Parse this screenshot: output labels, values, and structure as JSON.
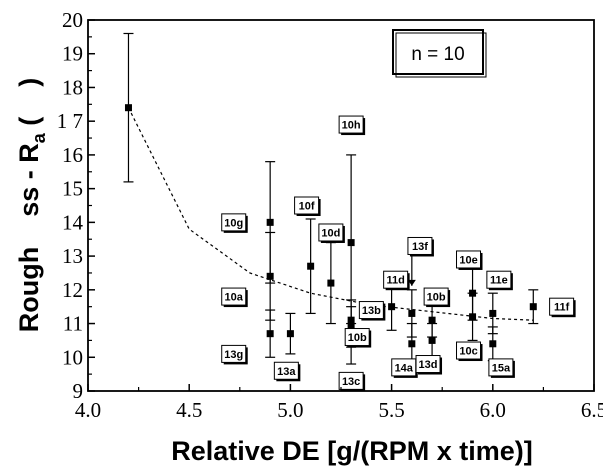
{
  "chart_data": {
    "type": "scatter",
    "title": "",
    "xlabel": "Relative DE [g/(RPM x time)]",
    "ylabel_parts": {
      "before": "Rough    ss - R",
      "sub": "a",
      "after": " (    )"
    },
    "xlim": [
      4.0,
      6.5
    ],
    "ylim": [
      9,
      20
    ],
    "x_ticks": [
      4.0,
      4.5,
      5.0,
      5.5,
      6.0,
      6.5
    ],
    "x_tick_labels": [
      "4.0",
      "4.5",
      "5.0",
      "5.5",
      "6.0",
      "6.5"
    ],
    "y_ticks": [
      9,
      10,
      11,
      12,
      13,
      14,
      15,
      16,
      17,
      18,
      19,
      20
    ],
    "y_tick_labels": [
      "9",
      "10",
      "11",
      "12",
      "13",
      "14",
      "15",
      "16",
      "1 7",
      "18",
      "19",
      "20"
    ],
    "legend_text": "n = 10",
    "legend_placement": "top-right",
    "grid": false,
    "points": [
      {
        "x": 4.2,
        "y": 17.4,
        "lo": 15.2,
        "hi": 19.6,
        "label": null
      },
      {
        "x": 4.9,
        "y": 14.0,
        "lo": 12.2,
        "hi": 15.8,
        "label": "10g",
        "lx": 4.72,
        "ly": 14.0
      },
      {
        "x": 4.9,
        "y": 12.4,
        "lo": 11.1,
        "hi": 13.7,
        "label": "10a",
        "lx": 4.72,
        "ly": 11.8
      },
      {
        "x": 4.9,
        "y": 10.7,
        "lo": 10.0,
        "hi": 11.4,
        "label": "13g",
        "lx": 4.72,
        "ly": 10.1
      },
      {
        "x": 5.0,
        "y": 10.7,
        "lo": 10.1,
        "hi": 11.3,
        "label": "13a",
        "lx": 4.98,
        "ly": 9.6
      },
      {
        "x": 5.1,
        "y": 12.7,
        "lo": 11.3,
        "hi": 14.1,
        "label": "10f",
        "lx": 5.08,
        "ly": 14.5
      },
      {
        "x": 5.2,
        "y": 12.2,
        "lo": 11.0,
        "hi": 13.4,
        "label": "10d",
        "lx": 5.2,
        "ly": 13.7
      },
      {
        "x": 5.3,
        "y": 13.4,
        "lo": 10.8,
        "hi": 16.0,
        "label": "10h",
        "lx": 5.3,
        "ly": 16.9
      },
      {
        "x": 5.3,
        "y": 11.1,
        "lo": 10.5,
        "hi": 11.7,
        "label": "13b",
        "lx": 5.4,
        "ly": 11.4
      },
      {
        "x": 5.3,
        "y": 10.9,
        "lo": 10.3,
        "hi": 11.5,
        "label": "10b",
        "lx": 5.33,
        "ly": 10.6
      },
      {
        "x": 5.3,
        "y": 10.4,
        "lo": 9.8,
        "hi": 11.0,
        "label": "13c",
        "lx": 5.3,
        "ly": 9.3
      },
      {
        "x": 5.5,
        "y": 11.5,
        "lo": 10.8,
        "hi": 12.2,
        "label": "11d",
        "lx": 5.52,
        "ly": 12.3
      },
      {
        "x": 5.6,
        "y": 11.3,
        "lo": 10.6,
        "hi": 12.0,
        "label": "13f",
        "lx": 5.64,
        "ly": 13.3
      },
      {
        "x": 5.6,
        "y": 10.4,
        "lo": 9.8,
        "hi": 11.0,
        "label": "14a",
        "lx": 5.56,
        "ly": 9.7
      },
      {
        "x": 5.7,
        "y": 11.1,
        "lo": 10.6,
        "hi": 11.6,
        "label": "10b",
        "lx": 5.72,
        "ly": 11.8
      },
      {
        "x": 5.7,
        "y": 10.5,
        "lo": 10.0,
        "hi": 11.0,
        "label": "13d",
        "lx": 5.68,
        "ly": 9.8
      },
      {
        "x": 5.9,
        "y": 11.9,
        "lo": 11.1,
        "hi": 12.7,
        "label": "10e",
        "lx": 5.88,
        "ly": 12.9
      },
      {
        "x": 5.9,
        "y": 11.2,
        "lo": 10.5,
        "hi": 11.9,
        "label": "10c",
        "lx": 5.88,
        "ly": 10.2
      },
      {
        "x": 6.0,
        "y": 11.3,
        "lo": 10.7,
        "hi": 11.9,
        "label": "11e",
        "lx": 6.03,
        "ly": 12.3
      },
      {
        "x": 6.0,
        "y": 10.4,
        "lo": 9.9,
        "hi": 10.9,
        "label": "15a",
        "lx": 6.04,
        "ly": 9.7
      },
      {
        "x": 6.2,
        "y": 11.5,
        "lo": 11.0,
        "hi": 12.0,
        "label": "11f",
        "lx": 6.34,
        "ly": 11.5
      }
    ],
    "fit_curve": {
      "style": "dashed",
      "x": [
        4.2,
        4.5,
        4.8,
        5.1,
        5.4,
        5.7,
        6.0,
        6.2
      ],
      "y": [
        17.4,
        13.8,
        12.5,
        11.9,
        11.55,
        11.35,
        11.15,
        11.1
      ]
    }
  }
}
